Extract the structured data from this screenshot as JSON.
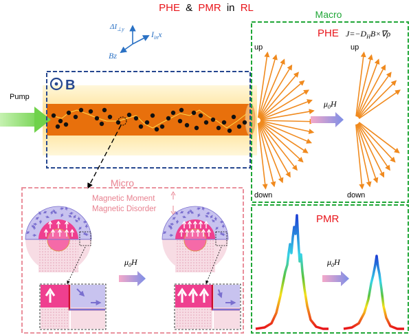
{
  "title": {
    "phe": "PHE",
    "amp": "&",
    "pmr": "PMR",
    "in": "in",
    "rl": "RL"
  },
  "axes_glyph": {
    "top": "ΔI",
    "top_sub": "⊥y",
    "right": "I",
    "right_sub": "in",
    "right_tail": "x",
    "down": "Bz"
  },
  "labels": {
    "pump": "Pump",
    "b_field": "B",
    "macro": "Macro",
    "micro": "Micro",
    "magnetic_moment": "Magnetic Moment",
    "magnetic_disorder": "Magnetic Disorder",
    "field_mu": "μ",
    "field_sub": "0",
    "field_h": "H"
  },
  "macro_panel": {
    "phe_label": "PHE",
    "equation": "J=−D",
    "equation_sub": "H",
    "equation_tail": "B×∇ρ",
    "left_up": "up",
    "left_down": "down",
    "right_up": "up",
    "right_down": "down"
  },
  "pmr_panel": {
    "label": "PMR"
  },
  "colors": {
    "red": "#e8141a",
    "green_box": "#1fa636",
    "blue_box": "#26478f",
    "pink_box": "#e88290",
    "orange_arrow": "#f08a1e",
    "core": "#e8700c",
    "glow": "#ffe9a6"
  }
}
